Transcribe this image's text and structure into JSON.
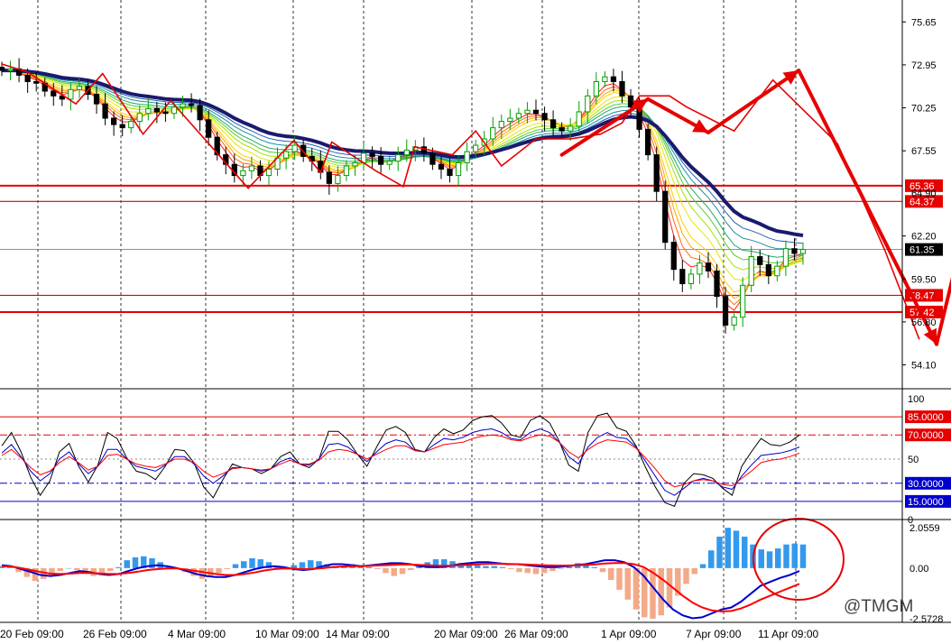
{
  "chart_data": [
    {
      "type": "candlestick",
      "title": "",
      "x_dates": [
        "20 Feb 09:00",
        "26 Feb 09:00",
        "4 Mar 09:00",
        "10 Mar 09:00",
        "14 Mar 09:00",
        "20 Mar 09:00",
        "26 Mar 09:00",
        "1 Apr 09:00",
        "7 Apr 09:00",
        "11 Apr 09:00"
      ],
      "price_ticks": [
        "75.65",
        "72.95",
        "70.25",
        "67.55",
        "62.20",
        "59.50",
        "56.80",
        "54.10"
      ],
      "ylim": [
        52.6,
        76.8
      ],
      "grid": "vertical dashed at date labels",
      "current_price": {
        "value": 61.35,
        "label": "61.35"
      },
      "levels": [
        {
          "value": 65.36,
          "label": "65.36",
          "color": "#e60000"
        },
        {
          "value": 64.37,
          "label": "64.37",
          "color": "#e60000"
        },
        {
          "value": 58.47,
          "label": "58.47",
          "color": "#e60000"
        },
        {
          "value": 57.42,
          "label": "57.42",
          "color": "#e60000"
        }
      ],
      "hidden_tag": "64.90",
      "close_series": [
        72.6,
        72.7,
        72.3,
        71.9,
        71.8,
        71.3,
        71.0,
        70.8,
        71.4,
        71.6,
        71.1,
        70.5,
        69.6,
        69.2,
        69.0,
        69.4,
        69.9,
        70.2,
        70.0,
        69.9,
        70.3,
        70.5,
        70.4,
        69.5,
        68.4,
        67.3,
        66.7,
        66.0,
        66.3,
        66.6,
        66.0,
        66.4,
        67.1,
        67.5,
        67.9,
        67.2,
        66.9,
        66.2,
        65.5,
        66.0,
        66.6,
        66.8,
        67.4,
        67.2,
        66.7,
        66.9,
        67.3,
        67.6,
        67.8,
        67.4,
        66.7,
        66.4,
        66.0,
        66.8,
        67.5,
        67.9,
        68.3,
        69.0,
        69.4,
        69.6,
        69.9,
        70.1,
        69.9,
        69.5,
        69.0,
        68.8,
        69.1,
        70.0,
        71.0,
        71.9,
        72.2,
        71.9,
        71.0,
        70.3,
        68.9,
        67.3,
        65.0,
        61.8,
        60.1,
        59.2,
        59.8,
        60.5,
        60.0,
        58.4,
        56.6,
        57.1,
        59.1,
        60.9,
        60.4,
        59.7,
        60.3,
        61.4,
        61.1,
        61.35
      ],
      "zigzag": [
        {
          "x": 0,
          "y": 73.0
        },
        {
          "x": 3,
          "y": 72.5
        },
        {
          "x": 8.6,
          "y": 70.5
        },
        {
          "x": 11.7,
          "y": 72.4
        },
        {
          "x": 16.4,
          "y": 68.6
        },
        {
          "x": 19.6,
          "y": 70.7
        },
        {
          "x": 28.6,
          "y": 65.2
        },
        {
          "x": 33.9,
          "y": 68.2
        },
        {
          "x": 37.0,
          "y": 66.2
        },
        {
          "x": 38.3,
          "y": 68.1
        },
        {
          "x": 43.4,
          "y": 66.3
        },
        {
          "x": 46.6,
          "y": 65.3
        },
        {
          "x": 47.9,
          "y": 67.8
        },
        {
          "x": 52.3,
          "y": 67.3
        },
        {
          "x": 55.0,
          "y": 68.8
        },
        {
          "x": 58.0,
          "y": 66.6
        },
        {
          "x": 62.0,
          "y": 68.3
        },
        {
          "x": 66.0,
          "y": 68.3
        },
        {
          "x": 69.5,
          "y": 68.6
        },
        {
          "x": 72.0,
          "y": 69.3
        },
        {
          "x": 74.0,
          "y": 71.0
        },
        {
          "x": 77.5,
          "y": 71.0
        },
        {
          "x": 79.5,
          "y": 70.3
        },
        {
          "x": 85.0,
          "y": 68.8
        },
        {
          "x": 89.5,
          "y": 72.0
        },
        {
          "x": 97.0,
          "y": 68.0
        },
        {
          "x": 102.5,
          "y": 61.3
        },
        {
          "x": 106.5,
          "y": 55.7
        }
      ],
      "arrows": [
        {
          "from": [
            65.0,
            67.3
          ],
          "to": [
            75.0,
            70.8
          ]
        },
        {
          "from": [
            75.0,
            70.8
          ],
          "to": [
            82.0,
            68.7
          ]
        },
        {
          "from": [
            82.0,
            68.7
          ],
          "to": [
            92.5,
            72.6
          ]
        },
        {
          "from": [
            92.5,
            72.6
          ],
          "to": [
            108.5,
            55.4
          ]
        },
        {
          "from": [
            108.5,
            55.4
          ],
          "to": [
            112.0,
            63.2
          ]
        },
        {
          "from": [
            112.0,
            63.2
          ],
          "to": [
            118.5,
            59.3
          ]
        },
        {
          "from": [
            118.5,
            59.3
          ],
          "to": [
            122.0,
            64.2
          ]
        }
      ]
    },
    {
      "type": "line",
      "name": "",
      "yticks": [
        "100",
        "50",
        "0"
      ],
      "ylim": [
        0,
        100
      ],
      "levels": [
        {
          "value": 85,
          "label": "85.0000",
          "color": "#e60000",
          "style": "solid"
        },
        {
          "value": 70,
          "label": "70.0000",
          "color": "#e60000",
          "style": "dashdot"
        },
        {
          "value": 50,
          "label": "",
          "color": "#888888",
          "style": "dotted"
        },
        {
          "value": 30,
          "label": "30.0000",
          "color": "#0000cc",
          "style": "dashdot"
        },
        {
          "value": 15,
          "label": "15.0000",
          "color": "#0000cc",
          "style": "solid"
        }
      ],
      "series": [
        {
          "color": "#000000",
          "values": [
            61,
            72,
            56,
            35,
            20,
            32,
            56,
            63,
            44,
            31,
            45,
            72,
            67,
            51,
            40,
            38,
            33,
            44,
            58,
            57,
            47,
            27,
            18,
            33,
            46,
            43,
            42,
            38,
            42,
            52,
            56,
            46,
            43,
            50,
            73,
            73,
            66,
            54,
            44,
            60,
            74,
            77,
            72,
            58,
            56,
            68,
            75,
            71,
            74,
            82,
            85,
            86,
            80,
            70,
            68,
            82,
            86,
            80,
            65,
            45,
            40,
            72,
            86,
            88,
            76,
            73,
            61,
            43,
            27,
            14,
            11,
            30,
            38,
            37,
            34,
            26,
            20,
            44,
            56,
            67,
            62,
            61,
            64,
            70
          ]
        },
        {
          "color": "#0000cc",
          "values": [
            55,
            62,
            52,
            40,
            32,
            38,
            50,
            56,
            46,
            38,
            44,
            58,
            58,
            50,
            44,
            42,
            40,
            45,
            52,
            52,
            46,
            36,
            30,
            36,
            43,
            43,
            42,
            40,
            42,
            48,
            51,
            46,
            45,
            50,
            62,
            63,
            60,
            54,
            48,
            56,
            63,
            66,
            64,
            57,
            56,
            62,
            67,
            66,
            68,
            72,
            74,
            75,
            72,
            67,
            66,
            72,
            75,
            72,
            64,
            52,
            46,
            60,
            68,
            72,
            68,
            67,
            60,
            48,
            36,
            24,
            20,
            26,
            32,
            34,
            32,
            27,
            25,
            36,
            45,
            53,
            54,
            55,
            57,
            60
          ]
        },
        {
          "color": "#ff0000",
          "values": [
            53,
            58,
            51,
            43,
            37,
            40,
            47,
            52,
            47,
            41,
            44,
            53,
            54,
            50,
            46,
            44,
            43,
            46,
            50,
            50,
            47,
            40,
            35,
            38,
            42,
            43,
            42,
            41,
            42,
            46,
            49,
            46,
            46,
            49,
            56,
            58,
            57,
            54,
            50,
            54,
            58,
            61,
            61,
            57,
            56,
            59,
            62,
            63,
            64,
            67,
            69,
            70,
            69,
            66,
            65,
            68,
            70,
            69,
            64,
            56,
            51,
            58,
            63,
            66,
            65,
            64,
            59,
            51,
            42,
            32,
            27,
            29,
            32,
            33,
            32,
            29,
            28,
            34,
            40,
            47,
            49,
            50,
            52,
            55
          ]
        }
      ]
    },
    {
      "type": "bar",
      "name": "",
      "yticks": [
        "2.0559",
        "0.00",
        "-2.5728"
      ],
      "ylim": [
        -2.5728,
        2.0559
      ],
      "histogram": [
        0.1,
        0.05,
        -0.2,
        -0.45,
        -0.65,
        -0.55,
        -0.35,
        -0.15,
        0.0,
        -0.1,
        -0.25,
        -0.4,
        -0.3,
        -0.15,
        0.05,
        0.4,
        0.55,
        0.6,
        0.5,
        0.3,
        0.1,
        -0.05,
        -0.2,
        -0.4,
        -0.55,
        -0.45,
        -0.25,
        -0.05,
        0.2,
        0.35,
        0.5,
        0.45,
        0.3,
        0.1,
        0.0,
        0.15,
        0.3,
        0.4,
        0.35,
        0.2,
        0.05,
        0.1,
        0.2,
        0.15,
        0.05,
        -0.05,
        -0.25,
        -0.4,
        -0.3,
        -0.1,
        0.1,
        0.3,
        0.45,
        0.45,
        0.35,
        0.25,
        0.2,
        0.15,
        0.1,
        0.1,
        0.05,
        -0.05,
        -0.2,
        -0.25,
        -0.3,
        -0.25,
        -0.15,
        0.0,
        0.15,
        0.25,
        0.2,
        0.05,
        -0.2,
        -0.6,
        -1.1,
        -1.6,
        -2.1,
        -2.5,
        -2.57,
        -2.4,
        -2.0,
        -1.4,
        -0.8,
        -0.3,
        0.2,
        0.9,
        1.6,
        2.05,
        1.9,
        1.6,
        1.2,
        0.95,
        0.85,
        1.0,
        1.2,
        1.25,
        1.2
      ],
      "series": [
        {
          "color": "#0000cc",
          "values": [
            0.15,
            0.1,
            -0.05,
            -0.2,
            -0.35,
            -0.4,
            -0.35,
            -0.25,
            -0.15,
            -0.2,
            -0.3,
            -0.35,
            -0.3,
            -0.15,
            0.0,
            0.1,
            0.15,
            0.1,
            0.0,
            -0.15,
            -0.3,
            -0.4,
            -0.45,
            -0.45,
            -0.35,
            -0.2,
            -0.05,
            0.05,
            0.1,
            0.05,
            -0.05,
            -0.1,
            -0.05,
            0.1,
            0.2,
            0.2,
            0.15,
            0.1,
            0.15,
            0.2,
            0.25,
            0.25,
            0.2,
            0.1,
            0.05,
            0.05,
            0.1,
            0.2,
            0.25,
            0.3,
            0.3,
            0.25,
            0.2,
            0.2,
            0.15,
            0.1,
            0.05,
            0.05,
            0.1,
            0.15,
            0.2,
            0.3,
            0.4,
            0.4,
            0.3,
            0.05,
            -0.4,
            -1.0,
            -1.6,
            -2.1,
            -2.4,
            -2.55,
            -2.5,
            -2.3,
            -2.1,
            -2.0,
            -1.7,
            -1.3,
            -0.9,
            -0.7,
            -0.5,
            -0.35,
            -0.15
          ]
        },
        {
          "color": "#ff0000",
          "values": [
            0.1,
            0.08,
            0.0,
            -0.1,
            -0.2,
            -0.28,
            -0.3,
            -0.28,
            -0.25,
            -0.25,
            -0.27,
            -0.3,
            -0.3,
            -0.25,
            -0.18,
            -0.1,
            -0.05,
            -0.02,
            -0.02,
            -0.08,
            -0.15,
            -0.22,
            -0.3,
            -0.35,
            -0.35,
            -0.3,
            -0.22,
            -0.12,
            -0.05,
            -0.02,
            -0.03,
            -0.05,
            -0.04,
            0.0,
            0.05,
            0.08,
            0.1,
            0.1,
            0.12,
            0.14,
            0.16,
            0.18,
            0.18,
            0.16,
            0.14,
            0.12,
            0.12,
            0.14,
            0.17,
            0.2,
            0.22,
            0.22,
            0.21,
            0.2,
            0.18,
            0.16,
            0.14,
            0.13,
            0.13,
            0.14,
            0.16,
            0.19,
            0.23,
            0.26,
            0.26,
            0.2,
            0.05,
            -0.25,
            -0.6,
            -1.0,
            -1.4,
            -1.75,
            -2.0,
            -2.15,
            -2.2,
            -2.18,
            -2.05,
            -1.85,
            -1.6,
            -1.4,
            -1.2,
            -1.0,
            -0.8
          ]
        }
      ]
    }
  ],
  "watermark": "@TMGM",
  "colors": {
    "bull": "#00a000",
    "bear": "#000000",
    "trend": "#e60000",
    "ribbon_slow": "#1a1a6e",
    "hist_pos": "#3399ee",
    "hist_neg": "#f4a988"
  }
}
